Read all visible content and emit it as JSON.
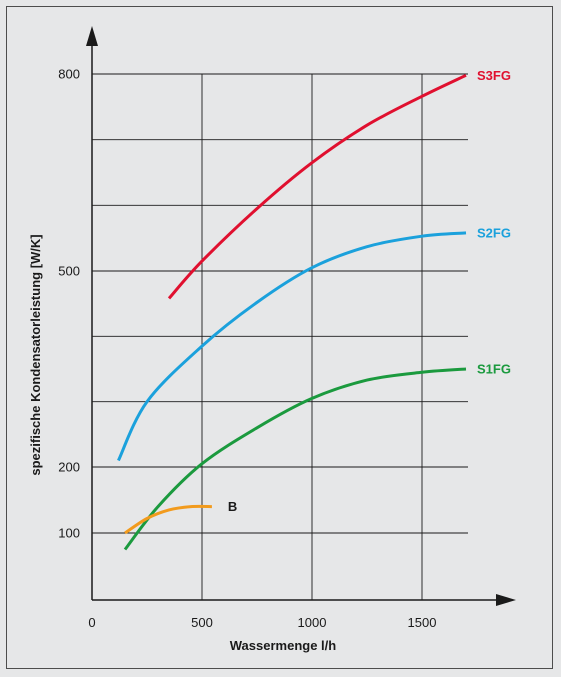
{
  "chart_data": {
    "type": "line",
    "title": "",
    "xlabel": "Wassermenge l/h",
    "ylabel": "spezifische Kondensatorleistung [W/K]",
    "xlim": [
      0,
      1700
    ],
    "x_ticks": [
      0,
      500,
      1000,
      1500
    ],
    "y_ticks": [
      100,
      200,
      500,
      800
    ],
    "y_gridlines": [
      100,
      200,
      300,
      400,
      500,
      600,
      700,
      800
    ],
    "grid": true,
    "series": [
      {
        "name": "S3FG",
        "color": "#e0102f",
        "points": [
          [
            350,
            458
          ],
          [
            500,
            515
          ],
          [
            750,
            595
          ],
          [
            1000,
            665
          ],
          [
            1250,
            722
          ],
          [
            1500,
            766
          ],
          [
            1700,
            798
          ]
        ]
      },
      {
        "name": "S2FG",
        "color": "#1ba1dc",
        "points": [
          [
            120,
            210
          ],
          [
            250,
            300
          ],
          [
            500,
            385
          ],
          [
            750,
            452
          ],
          [
            1000,
            505
          ],
          [
            1250,
            537
          ],
          [
            1500,
            553
          ],
          [
            1700,
            558
          ]
        ]
      },
      {
        "name": "S1FG",
        "color": "#1b9a3e",
        "points": [
          [
            150,
            75
          ],
          [
            300,
            140
          ],
          [
            500,
            205
          ],
          [
            750,
            260
          ],
          [
            1000,
            305
          ],
          [
            1250,
            333
          ],
          [
            1500,
            345
          ],
          [
            1700,
            350
          ]
        ]
      },
      {
        "name": "B",
        "color": "#f29b1d",
        "points": [
          [
            150,
            100
          ],
          [
            250,
            122
          ],
          [
            350,
            135
          ],
          [
            450,
            140
          ],
          [
            545,
            140
          ]
        ]
      }
    ]
  }
}
